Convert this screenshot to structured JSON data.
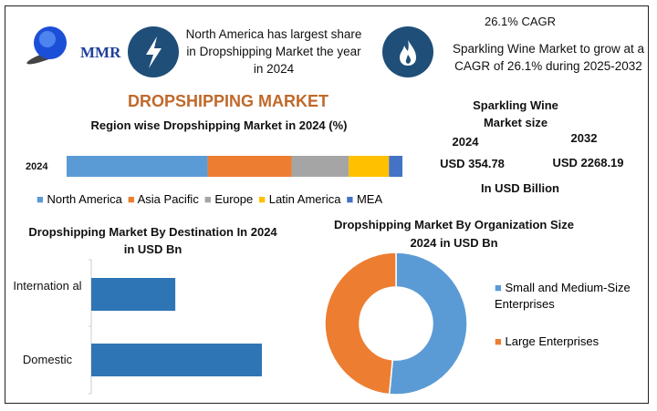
{
  "logo": {
    "text": "MMR"
  },
  "highlight1": {
    "icon": "lightning-icon",
    "text": "North America has largest share in Dropshipping Market the year in 2024"
  },
  "highlight2": {
    "icon": "flame-icon",
    "title": "26.1% CAGR",
    "text": "Sparkling Wine Market to grow at a CAGR of 26.1% during 2025-2032"
  },
  "main_title": "DROPSHIPPING MARKET",
  "market_size": {
    "title": "Sparkling Wine Market size",
    "year1": "2024",
    "value1": "USD 354.78",
    "year2": "2032",
    "value2": "USD 2268.19",
    "unit": "In USD Billion"
  },
  "colors": {
    "accent": "#c0692b",
    "icon_bg": "#1f4e79"
  },
  "chart_data": [
    {
      "type": "bar",
      "stacked": true,
      "orientation": "horizontal",
      "title": "Region wise Dropshipping Market in 2024 (%)",
      "categories": [
        "2024"
      ],
      "series": [
        {
          "name": "North America",
          "values": [
            42
          ],
          "color": "#5b9bd5"
        },
        {
          "name": "Asia Pacific",
          "values": [
            25
          ],
          "color": "#ed7d31"
        },
        {
          "name": "Europe",
          "values": [
            17
          ],
          "color": "#a5a5a5"
        },
        {
          "name": "Latin America",
          "values": [
            12
          ],
          "color": "#ffc000"
        },
        {
          "name": "MEA",
          "values": [
            4
          ],
          "color": "#4472c4"
        }
      ],
      "legend": "bottom"
    },
    {
      "type": "bar",
      "orientation": "horizontal",
      "title": "Dropshipping Market By Destination In 2024 in USD Bn",
      "categories": [
        "International",
        "Domestic"
      ],
      "category_labels": [
        "Internation al",
        "Domestic"
      ],
      "values": [
        33,
        67
      ],
      "color": "#2e75b6"
    },
    {
      "type": "pie",
      "donut": true,
      "title": "Dropshipping Market By Organization Size 2024 in USD Bn",
      "labels": [
        "Small and Medium-Size Enterprises",
        "Large Enterprises"
      ],
      "values": [
        51.5,
        48.5
      ],
      "colors": [
        "#5b9bd5",
        "#ed7d31"
      ],
      "legend": "right"
    }
  ]
}
